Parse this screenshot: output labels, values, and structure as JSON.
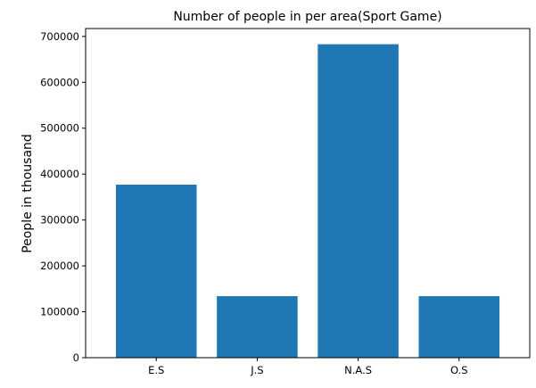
{
  "chart_data": {
    "type": "bar",
    "title": "Number of people in per area(Sport Game)",
    "xlabel": "",
    "ylabel": "People in thousand",
    "categories": [
      "E.S",
      "J.S",
      "N.A.S",
      "O.S"
    ],
    "values": [
      377000,
      134000,
      683000,
      134000
    ],
    "ylim": [
      0,
      717150
    ],
    "yticks": [
      0,
      100000,
      200000,
      300000,
      400000,
      500000,
      600000,
      700000
    ],
    "bar_color": "#1f77b4",
    "grid": false,
    "legend": "none"
  }
}
